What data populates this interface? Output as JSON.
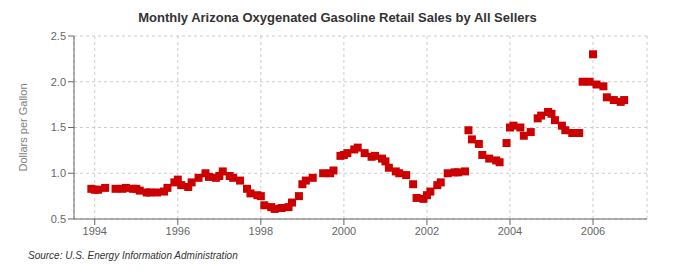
{
  "chart_data": {
    "type": "scatter",
    "title": "Monthly Arizona Oxygenated Gasoline Retail Sales by All Sellers",
    "ylabel": "Dollars per Gallon",
    "annotations": [
      "Source: U.S. Energy Information Administration"
    ],
    "color": "#cc0000",
    "marker": "square",
    "grid": true,
    "xlim": [
      1993.5,
      2007.3
    ],
    "xticks": [
      1994,
      1996,
      1998,
      2000,
      2002,
      2004,
      2006
    ],
    "ylim": [
      0.5,
      2.5
    ],
    "yticks": [
      0.5,
      {
        "value": 1.0,
        "label": "1.0"
      },
      1.5,
      {
        "value": 2.0,
        "label": "2.0"
      },
      2.5
    ],
    "x": [
      1993.917,
      1994.0,
      1994.083,
      1994.25,
      1994.5,
      1994.667,
      1994.75,
      1994.917,
      1995.0,
      1995.083,
      1995.25,
      1995.333,
      1995.5,
      1995.667,
      1995.75,
      1995.917,
      1996.0,
      1996.083,
      1996.25,
      1996.333,
      1996.5,
      1996.667,
      1996.75,
      1996.917,
      1997.0,
      1997.083,
      1997.25,
      1997.333,
      1997.5,
      1997.667,
      1997.75,
      1997.917,
      1998.0,
      1998.083,
      1998.25,
      1998.333,
      1998.5,
      1998.667,
      1998.75,
      1998.917,
      1999.0,
      1999.083,
      1999.25,
      1999.5,
      1999.667,
      1999.75,
      1999.917,
      2000.0,
      2000.083,
      2000.25,
      2000.333,
      2000.5,
      2000.667,
      2000.75,
      2000.917,
      2001.0,
      2001.083,
      2001.25,
      2001.333,
      2001.5,
      2001.667,
      2001.75,
      2001.917,
      2002.0,
      2002.083,
      2002.25,
      2002.333,
      2002.5,
      2002.667,
      2002.75,
      2002.917,
      2003.0,
      2003.083,
      2003.25,
      2003.333,
      2003.5,
      2003.667,
      2003.75,
      2003.917,
      2004.0,
      2004.083,
      2004.25,
      2004.333,
      2004.5,
      2004.667,
      2004.75,
      2004.917,
      2005.0,
      2005.083,
      2005.25,
      2005.333,
      2005.5,
      2005.667,
      2005.75,
      2005.917,
      2006.0,
      2006.083,
      2006.25,
      2006.333,
      2006.5,
      2006.667,
      2006.75
    ],
    "values": [
      0.83,
      0.82,
      0.82,
      0.84,
      0.83,
      0.83,
      0.84,
      0.83,
      0.83,
      0.81,
      0.79,
      0.79,
      0.79,
      0.8,
      0.84,
      0.9,
      0.93,
      0.87,
      0.85,
      0.9,
      0.95,
      1.0,
      0.96,
      0.95,
      0.97,
      1.02,
      0.97,
      0.95,
      0.92,
      0.83,
      0.78,
      0.76,
      0.75,
      0.65,
      0.63,
      0.61,
      0.62,
      0.63,
      0.68,
      0.75,
      0.88,
      0.92,
      0.95,
      1.0,
      1.0,
      1.03,
      1.19,
      1.2,
      1.22,
      1.26,
      1.28,
      1.22,
      1.18,
      1.19,
      1.16,
      1.13,
      1.06,
      1.02,
      1.0,
      0.98,
      0.88,
      0.73,
      0.72,
      0.76,
      0.8,
      0.87,
      0.9,
      1.0,
      1.01,
      1.01,
      1.02,
      1.47,
      1.37,
      1.32,
      1.2,
      1.16,
      1.14,
      1.12,
      1.33,
      1.5,
      1.52,
      1.5,
      1.41,
      1.45,
      1.6,
      1.63,
      1.67,
      1.65,
      1.58,
      1.52,
      1.47,
      1.44,
      1.44,
      2.0,
      2.0,
      2.3,
      1.97,
      1.95,
      1.83,
      1.8,
      1.78,
      1.8
    ]
  }
}
